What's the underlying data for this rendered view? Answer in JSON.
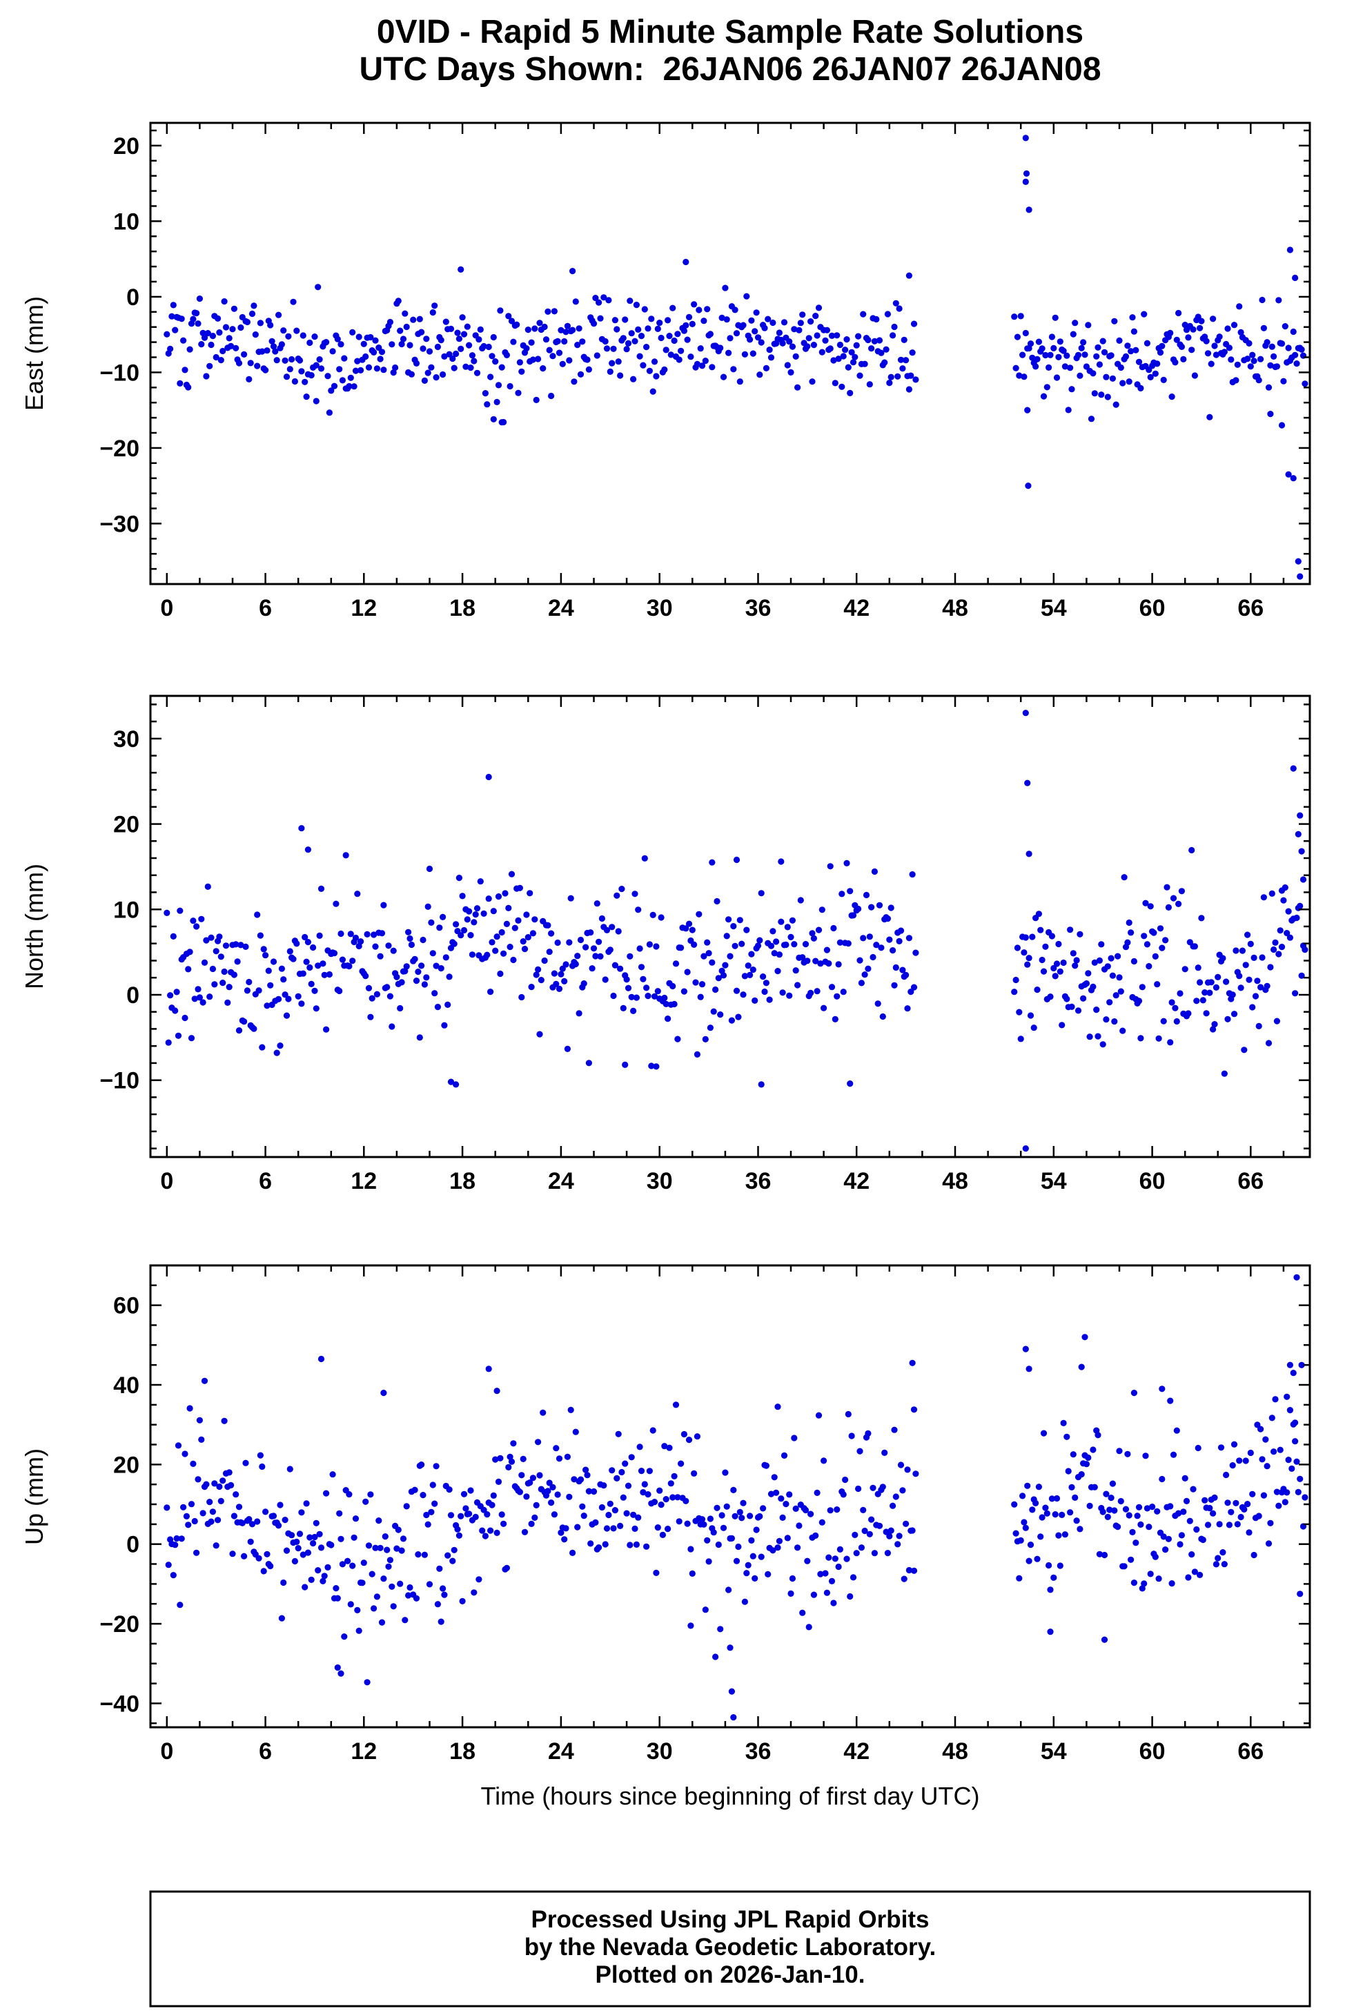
{
  "title": {
    "line1": "0VID - Rapid 5 Minute Sample Rate Solutions",
    "line2": "UTC Days Shown:  26JAN06 26JAN07 26JAN08"
  },
  "xlabel": "Time (hours since beginning of first day UTC)",
  "footer": {
    "line1": "Processed Using JPL Rapid Orbits",
    "line2": "by the Nevada Geodetic Laboratory.",
    "line3": "Plotted on 2026-Jan-10."
  },
  "style": {
    "point_color": "#0000e0",
    "frame_color": "#000000",
    "point_radius": 4.6
  },
  "chart_data": [
    {
      "type": "scatter",
      "ylabel": "East (mm)",
      "xlim": [
        -1.0,
        69.6
      ],
      "ylim": [
        -38,
        23
      ],
      "xticks": [
        0,
        6,
        12,
        18,
        24,
        30,
        36,
        42,
        48,
        54,
        60,
        66
      ],
      "yticks": [
        -30,
        -20,
        -10,
        0,
        10,
        20
      ],
      "x_minor": 2,
      "y_minor": 2,
      "synthesis": {
        "seed": 101,
        "step": 0.1,
        "sd": 2.9,
        "segments": [
          [
            0,
            45.65
          ],
          [
            51.6,
            69.3
          ]
        ],
        "trend": [
          [
            0,
            -5.5
          ],
          [
            4,
            -5.5
          ],
          [
            8,
            -7.5
          ],
          [
            10,
            -8.5
          ],
          [
            13,
            -6
          ],
          [
            16,
            -6
          ],
          [
            19,
            -8.5
          ],
          [
            21,
            -8
          ],
          [
            24,
            -6
          ],
          [
            27,
            -5
          ],
          [
            30,
            -5.5
          ],
          [
            33,
            -4.5
          ],
          [
            36,
            -6
          ],
          [
            39,
            -6
          ],
          [
            42,
            -6.5
          ],
          [
            45.7,
            -7
          ],
          [
            51.6,
            -6
          ],
          [
            54,
            -7
          ],
          [
            56,
            -8.5
          ],
          [
            58,
            -8
          ],
          [
            60,
            -7
          ],
          [
            63,
            -7
          ],
          [
            66,
            -7
          ],
          [
            69.3,
            -8
          ]
        ]
      },
      "outliers": [
        [
          52.3,
          21
        ],
        [
          52.35,
          16.3
        ],
        [
          52.3,
          15.2
        ],
        [
          52.5,
          11.5
        ],
        [
          52.4,
          -15
        ],
        [
          52.45,
          -25
        ],
        [
          67.2,
          -15.5
        ],
        [
          67.9,
          -17
        ],
        [
          68.3,
          -23.5
        ],
        [
          68.6,
          -24
        ],
        [
          68.4,
          6.2
        ],
        [
          68.7,
          2.5
        ],
        [
          68.9,
          -35
        ],
        [
          69.0,
          -37
        ],
        [
          19.9,
          -16.2
        ],
        [
          20.4,
          -16.6
        ],
        [
          9.1,
          -13.8
        ],
        [
          24.7,
          3.4
        ],
        [
          31.6,
          4.6
        ],
        [
          17.9,
          3.6
        ],
        [
          45.2,
          2.8
        ]
      ]
    },
    {
      "type": "scatter",
      "ylabel": "North (mm)",
      "xlim": [
        -1.0,
        69.6
      ],
      "ylim": [
        -19,
        35
      ],
      "xticks": [
        0,
        6,
        12,
        18,
        24,
        30,
        36,
        42,
        48,
        54,
        60,
        66
      ],
      "yticks": [
        -10,
        0,
        10,
        20,
        30
      ],
      "x_minor": 2,
      "y_minor": 2,
      "synthesis": {
        "seed": 202,
        "step": 0.1,
        "sd": 4.1,
        "segments": [
          [
            0,
            45.65
          ],
          [
            51.6,
            69.3
          ]
        ],
        "trend": [
          [
            0,
            1.5
          ],
          [
            3,
            3
          ],
          [
            6,
            2
          ],
          [
            9,
            4
          ],
          [
            12,
            4
          ],
          [
            15,
            3
          ],
          [
            18,
            5
          ],
          [
            21,
            7
          ],
          [
            24,
            5
          ],
          [
            27,
            4
          ],
          [
            30,
            3
          ],
          [
            33,
            2
          ],
          [
            36,
            4
          ],
          [
            39,
            5
          ],
          [
            42,
            6.5
          ],
          [
            45.7,
            6
          ],
          [
            51.6,
            3
          ],
          [
            54,
            5
          ],
          [
            56,
            1
          ],
          [
            58,
            2
          ],
          [
            60,
            4
          ],
          [
            63,
            3
          ],
          [
            66,
            1
          ],
          [
            69.3,
            9
          ]
        ]
      },
      "outliers": [
        [
          52.3,
          33
        ],
        [
          52.4,
          24.8
        ],
        [
          52.5,
          16.5
        ],
        [
          52.3,
          -18
        ],
        [
          19.6,
          25.5
        ],
        [
          8.2,
          19.5
        ],
        [
          8.6,
          17
        ],
        [
          17.3,
          -10.2
        ],
        [
          17.6,
          -10.5
        ],
        [
          36.2,
          -10.5
        ],
        [
          41.6,
          -10.4
        ],
        [
          68.6,
          26.5
        ],
        [
          69.0,
          21
        ],
        [
          68.9,
          18.8
        ],
        [
          69.1,
          16.8
        ],
        [
          69.2,
          13.5
        ],
        [
          67.9,
          12.2
        ],
        [
          34.7,
          15.8
        ],
        [
          37.4,
          15.6
        ],
        [
          33.2,
          15.5
        ],
        [
          27.9,
          -8.2
        ],
        [
          29.8,
          -8.4
        ]
      ]
    },
    {
      "type": "scatter",
      "ylabel": "Up (mm)",
      "xlim": [
        -1.0,
        69.6
      ],
      "ylim": [
        -46,
        70
      ],
      "xticks": [
        0,
        6,
        12,
        18,
        24,
        30,
        36,
        42,
        48,
        54,
        60,
        66
      ],
      "yticks": [
        -40,
        -20,
        0,
        20,
        40,
        60
      ],
      "x_minor": 2,
      "y_minor": 5,
      "synthesis": {
        "seed": 303,
        "step": 0.1,
        "sd": 9.3,
        "segments": [
          [
            0,
            45.65
          ],
          [
            51.6,
            69.3
          ]
        ],
        "trend": [
          [
            0,
            8
          ],
          [
            2,
            14
          ],
          [
            4,
            8
          ],
          [
            6,
            4
          ],
          [
            8,
            2
          ],
          [
            10,
            -1
          ],
          [
            12,
            -4
          ],
          [
            14,
            -3
          ],
          [
            16,
            2
          ],
          [
            18,
            4
          ],
          [
            20,
            10
          ],
          [
            22,
            12
          ],
          [
            24,
            11
          ],
          [
            26,
            13
          ],
          [
            28,
            14
          ],
          [
            30,
            16
          ],
          [
            32,
            8
          ],
          [
            34,
            2
          ],
          [
            36,
            2
          ],
          [
            38,
            6
          ],
          [
            40,
            0
          ],
          [
            42,
            6
          ],
          [
            44,
            9
          ],
          [
            45.7,
            10
          ],
          [
            51.6,
            6
          ],
          [
            54,
            10
          ],
          [
            56,
            12
          ],
          [
            58,
            4
          ],
          [
            60,
            6
          ],
          [
            62,
            8
          ],
          [
            64,
            6
          ],
          [
            66,
            12
          ],
          [
            68,
            16
          ],
          [
            69.3,
            20
          ]
        ]
      },
      "outliers": [
        [
          2.3,
          41
        ],
        [
          9.4,
          46.5
        ],
        [
          10.4,
          -31
        ],
        [
          10.6,
          -32.5
        ],
        [
          13.2,
          38
        ],
        [
          19.6,
          44
        ],
        [
          20.1,
          38.5
        ],
        [
          34.4,
          -37
        ],
        [
          34.5,
          -43.5
        ],
        [
          34.3,
          -26
        ],
        [
          31.9,
          -20.5
        ],
        [
          37.2,
          34.5
        ],
        [
          45.4,
          45.5
        ],
        [
          45.5,
          33.8
        ],
        [
          52.3,
          49
        ],
        [
          52.5,
          44
        ],
        [
          55.9,
          52
        ],
        [
          55.7,
          44.5
        ],
        [
          57.1,
          -24
        ],
        [
          53.8,
          -22
        ],
        [
          60.6,
          39
        ],
        [
          61.1,
          36
        ],
        [
          58.9,
          38
        ],
        [
          68.4,
          45
        ],
        [
          68.6,
          43
        ],
        [
          68.2,
          37
        ],
        [
          68.7,
          30.5
        ],
        [
          68.8,
          67
        ],
        [
          69.0,
          -12.5
        ]
      ]
    }
  ]
}
